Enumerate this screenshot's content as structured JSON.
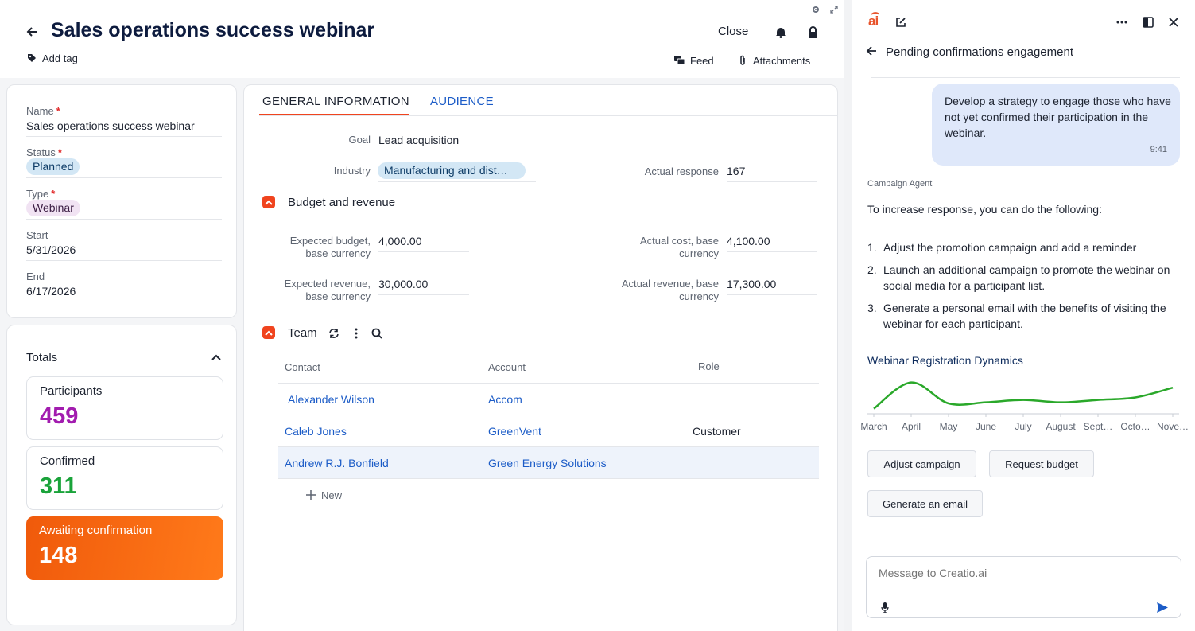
{
  "header": {
    "title": "Sales operations success webinar",
    "close_label": "Close",
    "add_tag_label": "Add tag",
    "feed_label": "Feed",
    "attachments_label": "Attachments"
  },
  "details": {
    "name_label": "Name",
    "name_value": "Sales operations success webinar",
    "status_label": "Status",
    "status_value": "Planned",
    "type_label": "Type",
    "type_value": "Webinar",
    "start_label": "Start",
    "start_value": "5/31/2026",
    "end_label": "End",
    "end_value": "6/17/2026"
  },
  "totals": {
    "title": "Totals",
    "participants_label": "Participants",
    "participants_value": "459",
    "confirmed_label": "Confirmed",
    "confirmed_value": "311",
    "awaiting_label": "Awaiting confirmation",
    "awaiting_value": "148"
  },
  "tabs": [
    "GENERAL INFORMATION",
    "AUDIENCE"
  ],
  "general": {
    "goal_label": "Goal",
    "goal_value": "Lead acquisition",
    "industry_label": "Industry",
    "industry_value": "Manufacturing and dist…",
    "actual_response_label": "Actual response",
    "actual_response_value": "167"
  },
  "budget": {
    "title": "Budget and revenue",
    "expected_budget_label_1": "Expected budget,",
    "expected_budget_label_2": "base currency",
    "expected_budget_value": "4,000.00",
    "actual_cost_label_1": "Actual cost, base",
    "actual_cost_label_2": "currency",
    "actual_cost_value": "4,100.00",
    "expected_revenue_label_1": "Expected revenue,",
    "expected_revenue_label_2": "base currency",
    "expected_revenue_value": "30,000.00",
    "actual_revenue_label_1": "Actual revenue, base",
    "actual_revenue_label_2": "currency",
    "actual_revenue_value": "17,300.00"
  },
  "team": {
    "title": "Team",
    "columns": [
      "Contact",
      "Account",
      "Role"
    ],
    "rows": [
      {
        "contact": "Alexander Wilson",
        "account": "Accom",
        "role": ""
      },
      {
        "contact": "Caleb Jones",
        "account": "GreenVent",
        "role": "Customer"
      },
      {
        "contact": "Andrew R.J. Bonfield",
        "account": "Green Energy Solutions",
        "role": ""
      }
    ],
    "new_label": "New"
  },
  "ai": {
    "logo_text": "ai",
    "title": "Pending confirmations engagement",
    "user_message": "Develop a strategy to engage those who have not yet confirmed their participation in the webinar.",
    "user_time": "9:41",
    "agent_name": "Campaign Agent",
    "agent_intro": "To increase response, you can do the following:",
    "suggestions": [
      "Adjust the promotion campaign and add a reminder",
      "Launch an additional campaign to promote the webinar on social media for a participant list.",
      "Generate a personal email with the benefits of visiting the webinar for each participant."
    ],
    "buttons": {
      "adjust": "Adjust campaign",
      "request": "Request budget",
      "email": "Generate an email"
    },
    "input_placeholder": "Message to Creatio.ai"
  },
  "colors": {
    "accent_orange": "#f0441e",
    "participants": "#a21caf",
    "confirmed": "#1aa33a",
    "line": "#2aa82a",
    "link": "#1c5cc7"
  },
  "chart_data": {
    "type": "line",
    "title": "Webinar Registration Dynamics",
    "categories": [
      "March",
      "April",
      "May",
      "June",
      "July",
      "August",
      "Sept…",
      "Octo…",
      "Nove…"
    ],
    "series": [
      {
        "values": [
          10,
          85,
          25,
          28,
          35,
          28,
          35,
          42,
          70
        ]
      }
    ],
    "ylim": [
      0,
      100
    ],
    "grid": false
  }
}
